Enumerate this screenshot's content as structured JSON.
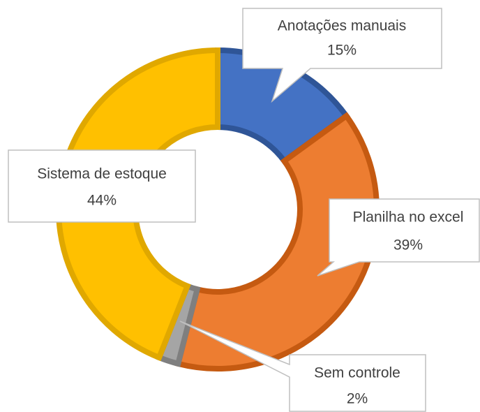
{
  "chart_data": {
    "type": "donut",
    "categories": [
      "Anotações manuais",
      "Planilha no excel",
      "Sem controle",
      "Sistema de estoque"
    ],
    "values": [
      15,
      39,
      2,
      44
    ],
    "value_labels": [
      "15%",
      "39%",
      "2%",
      "44%"
    ],
    "colors": [
      "#4472c4",
      "#ed7d31",
      "#a5a5a5",
      "#ffc000"
    ]
  }
}
